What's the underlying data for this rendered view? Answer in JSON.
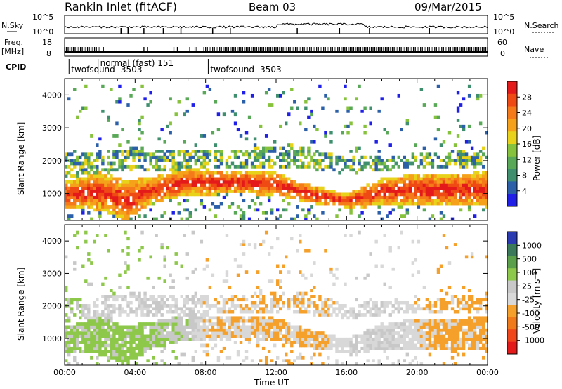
{
  "header": {
    "station": "Rankin Inlet (fitACF)",
    "beam": "Beam 03",
    "date": "09/Mar/2015"
  },
  "sky_panel": {
    "left_label": "N.Sky",
    "right_label": "N.Search",
    "left_ticks": [
      "10^5",
      "10^0"
    ],
    "right_ticks": [
      "10^5",
      "10^0"
    ]
  },
  "freq_panel": {
    "left_label": "Freq.",
    "left_unit": "[MHz]",
    "right_label": "Nave",
    "left_ticks": [
      "18",
      "8"
    ],
    "right_ticks": [
      "60",
      "0"
    ]
  },
  "cpid": {
    "label": "CPID",
    "segments": [
      {
        "text": "twofsound -3503",
        "start_hour": 0.25
      },
      {
        "text": "normal (fast) 151",
        "start_hour": 1.9
      },
      {
        "text": "twofsound -3503",
        "start_hour": 8.15
      }
    ]
  },
  "colors": {
    "power_scale": [
      "#1f1fe8",
      "#2b5fa8",
      "#3f8f6e",
      "#59a857",
      "#86c23b",
      "#e8d21a",
      "#f5a21a",
      "#f57a1a",
      "#f04a14",
      "#e41a1a"
    ],
    "velocity_scale": [
      "#2a3ab0",
      "#3a7a5a",
      "#5aa04a",
      "#8ec84a",
      "#c8c8c8",
      "#d8d8d8",
      "#f5a02a",
      "#f07a1a",
      "#f0461a",
      "#e41a1a"
    ]
  },
  "chart_data": [
    {
      "type": "heatmap",
      "name": "power",
      "ylabel": "Slant Range [km]",
      "xlabel": "",
      "xlim": [
        0,
        24
      ],
      "ylim": [
        180,
        4500
      ],
      "xticks": [
        "00:00",
        "04:00",
        "08:00",
        "12:00",
        "16:00",
        "20:00",
        "00:00"
      ],
      "yticks": [
        1000,
        2000,
        3000,
        4000
      ],
      "colorbar": {
        "label": "Power [dB]",
        "ticks": [
          "28",
          "24",
          "20",
          "16",
          "12",
          "8",
          "4"
        ],
        "range": [
          0,
          30
        ]
      },
      "main_band": [
        {
          "hour": 0.0,
          "lo": 550,
          "hi": 1350
        },
        {
          "hour": 2.0,
          "lo": 500,
          "hi": 1650
        },
        {
          "hour": 3.5,
          "lo": 180,
          "hi": 1400
        },
        {
          "hour": 5.0,
          "lo": 700,
          "hi": 1500
        },
        {
          "hour": 7.0,
          "lo": 950,
          "hi": 1750
        },
        {
          "hour": 10.0,
          "lo": 1000,
          "hi": 1700
        },
        {
          "hour": 12.0,
          "lo": 950,
          "hi": 1650
        },
        {
          "hour": 14.0,
          "lo": 700,
          "hi": 1250
        },
        {
          "hour": 16.0,
          "lo": 550,
          "hi": 1000
        },
        {
          "hour": 18.0,
          "lo": 650,
          "hi": 1450
        },
        {
          "hour": 20.0,
          "lo": 650,
          "hi": 1600
        },
        {
          "hour": 24.0,
          "lo": 600,
          "hi": 1650
        }
      ],
      "upper_band": [
        {
          "hour": 0.0,
          "lo": 1500,
          "hi": 2200
        },
        {
          "hour": 4.0,
          "lo": 1700,
          "hi": 2400
        },
        {
          "hour": 9.0,
          "lo": 1750,
          "hi": 2300
        },
        {
          "hour": 13.0,
          "lo": 1800,
          "hi": 2500
        },
        {
          "hour": 16.0,
          "lo": 1600,
          "hi": 2100
        },
        {
          "hour": 20.0,
          "lo": 1800,
          "hi": 2200
        },
        {
          "hour": 24.0,
          "lo": 1800,
          "hi": 2400
        }
      ],
      "peak_power_db": 28,
      "upper_power_db": 12
    },
    {
      "type": "heatmap",
      "name": "velocity",
      "ylabel": "Slant Range [km]",
      "xlabel": "Time UT",
      "xlim": [
        0,
        24
      ],
      "ylim": [
        180,
        4500
      ],
      "xticks": [
        "00:00",
        "04:00",
        "08:00",
        "12:00",
        "16:00",
        "20:00",
        "00:00"
      ],
      "yticks": [
        1000,
        2000,
        3000,
        4000
      ],
      "colorbar": {
        "label": "Velocity [m s⁻¹]",
        "ticks": [
          "1000",
          "500",
          "100",
          "25",
          "-25",
          "-100",
          "-500",
          "-1000"
        ],
        "range": [
          -1200,
          1200
        ]
      },
      "velocity_by_time": [
        {
          "hour": 0.0,
          "value": 300
        },
        {
          "hour": 4.0,
          "value": 350
        },
        {
          "hour": 7.0,
          "value": 200
        },
        {
          "hour": 8.0,
          "value": -200
        },
        {
          "hour": 12.0,
          "value": -300
        },
        {
          "hour": 15.0,
          "value": -250
        },
        {
          "hour": 16.5,
          "value": 0
        },
        {
          "hour": 19.0,
          "value": -50
        },
        {
          "hour": 21.0,
          "value": -300
        },
        {
          "hour": 24.0,
          "value": -350
        }
      ]
    }
  ]
}
